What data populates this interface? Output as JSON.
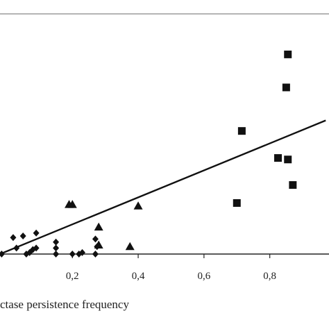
{
  "chart_data": {
    "type": "scatter",
    "xlabel": "ctase persistence frequency",
    "ylabel": "",
    "xlim": [
      -0.02,
      0.98
    ],
    "ylim": [
      0,
      16
    ],
    "x_ticks": [
      0.2,
      0.4,
      0.6,
      0.8
    ],
    "x_tick_labels": [
      "0,2",
      "0,4",
      "0,6",
      "0,8"
    ],
    "grid": false,
    "colors": {
      "marks": "#111111",
      "axes": "#222222",
      "frame": "#888888"
    },
    "series": [
      {
        "marker": "square",
        "points": [
          {
            "x": 0.7,
            "y": 3.4
          },
          {
            "x": 0.715,
            "y": 8.2
          },
          {
            "x": 0.825,
            "y": 6.4
          },
          {
            "x": 0.85,
            "y": 11.1
          },
          {
            "x": 0.855,
            "y": 13.3
          },
          {
            "x": 0.855,
            "y": 6.3
          },
          {
            "x": 0.87,
            "y": 4.6
          }
        ]
      },
      {
        "marker": "triangle",
        "points": [
          {
            "x": 0.19,
            "y": 3.3
          },
          {
            "x": 0.2,
            "y": 3.3
          },
          {
            "x": 0.28,
            "y": 1.8
          },
          {
            "x": 0.28,
            "y": 0.6
          },
          {
            "x": 0.375,
            "y": 0.5
          },
          {
            "x": 0.4,
            "y": 3.2
          }
        ]
      },
      {
        "marker": "diamond",
        "points": [
          {
            "x": -0.015,
            "y": 0.0
          },
          {
            "x": 0.02,
            "y": 1.1
          },
          {
            "x": 0.03,
            "y": 0.4
          },
          {
            "x": 0.05,
            "y": 1.2
          },
          {
            "x": 0.06,
            "y": 0.0
          },
          {
            "x": 0.07,
            "y": 0.1
          },
          {
            "x": 0.08,
            "y": 0.3
          },
          {
            "x": 0.09,
            "y": 0.4
          },
          {
            "x": 0.09,
            "y": 1.4
          },
          {
            "x": 0.15,
            "y": 0.0
          },
          {
            "x": 0.15,
            "y": 0.8
          },
          {
            "x": 0.15,
            "y": 0.4
          },
          {
            "x": 0.2,
            "y": 0.0
          },
          {
            "x": 0.22,
            "y": 0.0
          },
          {
            "x": 0.23,
            "y": 0.1
          },
          {
            "x": 0.27,
            "y": 0.0
          },
          {
            "x": 0.27,
            "y": 1.0
          },
          {
            "x": 0.275,
            "y": 0.5
          }
        ]
      }
    ],
    "trendline": {
      "x": [
        -0.02,
        0.97
      ],
      "y": [
        0.0,
        8.9
      ]
    }
  }
}
